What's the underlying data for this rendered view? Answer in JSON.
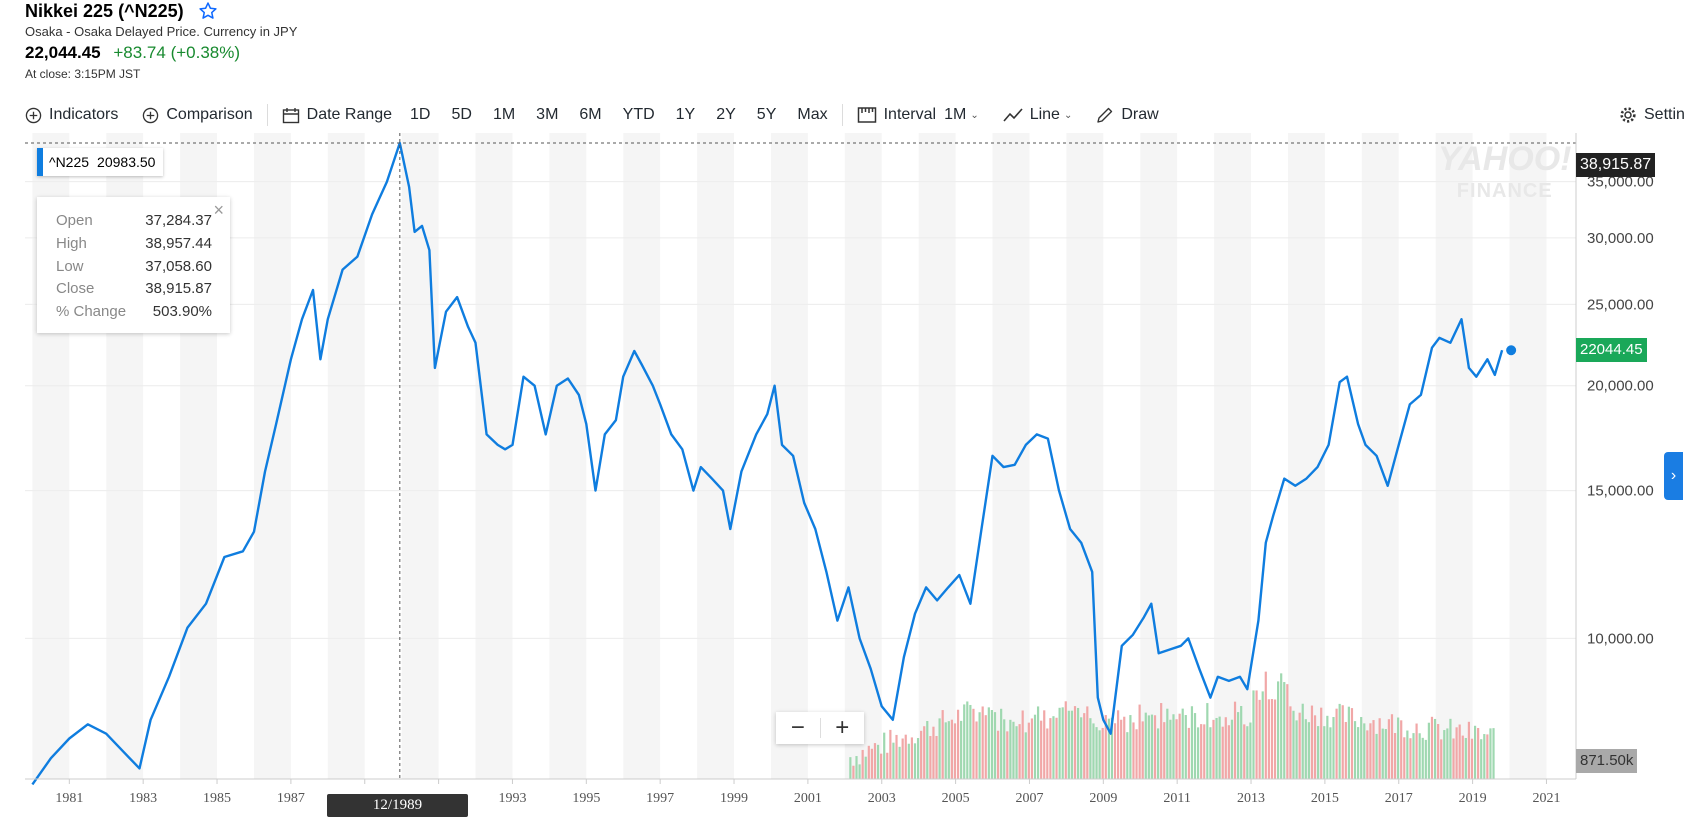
{
  "header": {
    "title": "Nikkei 225 (^N225)",
    "subtitle": "Osaka - Osaka Delayed Price. Currency in JPY",
    "price": "22,044.45",
    "change": "+83.74 (+0.38%)",
    "close_time": "At close: 3:15PM JST"
  },
  "toolbar": {
    "indicators": "Indicators",
    "comparison": "Comparison",
    "date_range": "Date Range",
    "ranges": [
      "1D",
      "5D",
      "1M",
      "3M",
      "6M",
      "YTD",
      "1Y",
      "2Y",
      "5Y",
      "Max"
    ],
    "interval_label": "Interval",
    "interval_value": "1M",
    "chart_type": "Line",
    "draw": "Draw",
    "settings": "Settin"
  },
  "series_tag": {
    "symbol": "^N225",
    "value": "20983.50"
  },
  "tooltip": {
    "rows": [
      {
        "label": "Open",
        "value": "37,284.37"
      },
      {
        "label": "High",
        "value": "38,957.44"
      },
      {
        "label": "Low",
        "value": "37,058.60"
      },
      {
        "label": "Close",
        "value": "38,915.87"
      },
      {
        "label": "% Change",
        "value": "503.90%"
      }
    ]
  },
  "flags": {
    "crosshair_value": "38,915.87",
    "last_price": "22044.45",
    "volume": "871.50k",
    "crosshair_date": "12/1989"
  },
  "watermark": {
    "line1": "YAHOO!",
    "line2": "FINANCE"
  },
  "colors": {
    "line": "#0f7ddf",
    "up_volume": "#9fd8b0",
    "down_volume": "#f1a7a7",
    "band": "#f5f5f5"
  },
  "chart_data": {
    "type": "line",
    "scale": "log",
    "ylim": [
      6800,
      40000
    ],
    "y_ticks": [
      10000,
      15000,
      20000,
      25000,
      30000,
      35000
    ],
    "y_tick_labels": [
      "10,000.00",
      "15,000.00",
      "20,000.00",
      "25,000.00",
      "30,000.00",
      "35,000.00"
    ],
    "xlim": [
      1979.8,
      2021.8
    ],
    "x_ticks": [
      1981,
      1983,
      1985,
      1987,
      1989,
      1991,
      1993,
      1995,
      1997,
      1999,
      2001,
      2003,
      2005,
      2007,
      2009,
      2011,
      2013,
      2015,
      2017,
      2019,
      2021
    ],
    "x_tick_labels": [
      "1981",
      "1983",
      "1985",
      "1987",
      "",
      "",
      "1993",
      "1995",
      "1997",
      "1999",
      "2001",
      "2003",
      "2005",
      "2007",
      "2009",
      "2011",
      "2013",
      "2015",
      "2017",
      "2019",
      "2021"
    ],
    "series": [
      {
        "x": [
          1980.0,
          1980.5,
          1981.0,
          1981.5,
          1982.0,
          1982.5,
          1982.9,
          1983.2,
          1983.7,
          1984.2,
          1984.7,
          1985.2,
          1985.7,
          1986.0,
          1986.3,
          1986.6,
          1987.0,
          1987.3,
          1987.6,
          1987.8,
          1988.0,
          1988.4,
          1988.8,
          1989.2,
          1989.6,
          1989.95,
          1990.2,
          1990.35,
          1990.55,
          1990.75,
          1990.9,
          1991.2,
          1991.5,
          1991.8,
          1992.0,
          1992.3,
          1992.6,
          1992.8,
          1993.0,
          1993.3,
          1993.6,
          1993.9,
          1994.2,
          1994.5,
          1994.8,
          1995.0,
          1995.25,
          1995.5,
          1995.8,
          1996.0,
          1996.3,
          1996.5,
          1996.8,
          1997.0,
          1997.3,
          1997.6,
          1997.9,
          1998.1,
          1998.4,
          1998.7,
          1998.9,
          1999.2,
          1999.6,
          1999.9,
          2000.1,
          2000.3,
          2000.6,
          2000.9,
          2001.2,
          2001.5,
          2001.8,
          2002.1,
          2002.4,
          2002.7,
          2003.0,
          2003.3,
          2003.6,
          2003.9,
          2004.2,
          2004.5,
          2004.8,
          2005.1,
          2005.4,
          2005.7,
          2006.0,
          2006.3,
          2006.6,
          2006.9,
          2007.2,
          2007.5,
          2007.8,
          2008.1,
          2008.4,
          2008.7,
          2008.85,
          2009.0,
          2009.2,
          2009.5,
          2009.8,
          2010.1,
          2010.3,
          2010.5,
          2010.8,
          2011.1,
          2011.3,
          2011.6,
          2011.9,
          2012.1,
          2012.4,
          2012.7,
          2012.9,
          2013.2,
          2013.4,
          2013.6,
          2013.9,
          2014.2,
          2014.5,
          2014.8,
          2015.1,
          2015.4,
          2015.6,
          2015.9,
          2016.1,
          2016.4,
          2016.7,
          2017.0,
          2017.3,
          2017.6,
          2017.9,
          2018.1,
          2018.4,
          2018.7,
          2018.9,
          2019.1,
          2019.4,
          2019.6,
          2019.8
        ],
        "y": [
          6700,
          7200,
          7600,
          7900,
          7700,
          7300,
          7000,
          8000,
          9000,
          10300,
          11000,
          12500,
          12700,
          13400,
          15800,
          18000,
          21500,
          24000,
          26000,
          21500,
          24000,
          27500,
          28500,
          32000,
          35000,
          38916,
          34500,
          30500,
          31000,
          29000,
          21000,
          24500,
          25500,
          23500,
          22500,
          17500,
          17000,
          16800,
          17000,
          20500,
          20000,
          17500,
          20000,
          20400,
          19500,
          18000,
          15000,
          17500,
          18200,
          20500,
          22000,
          21200,
          20000,
          19000,
          17500,
          16800,
          15000,
          16000,
          15500,
          15000,
          13500,
          15800,
          17500,
          18500,
          20000,
          17000,
          16500,
          14500,
          13500,
          12000,
          10500,
          11500,
          10000,
          9200,
          8300,
          8000,
          9500,
          10700,
          11500,
          11100,
          11500,
          11900,
          11000,
          13500,
          16500,
          16000,
          16100,
          17000,
          17500,
          17300,
          15000,
          13500,
          13000,
          12000,
          8500,
          8000,
          7700,
          9800,
          10100,
          10600,
          11000,
          9600,
          9700,
          9800,
          10000,
          9200,
          8500,
          9000,
          8900,
          9000,
          8700,
          10500,
          13000,
          14000,
          15500,
          15200,
          15500,
          16000,
          17000,
          20200,
          20500,
          18000,
          17000,
          16500,
          15200,
          17000,
          19000,
          19500,
          22200,
          22800,
          22500,
          24000,
          21000,
          20500,
          21500,
          20600,
          22044
        ]
      }
    ],
    "volume_note": "Volume histogram shown from 2002 onward; green = up month, red = down month"
  }
}
